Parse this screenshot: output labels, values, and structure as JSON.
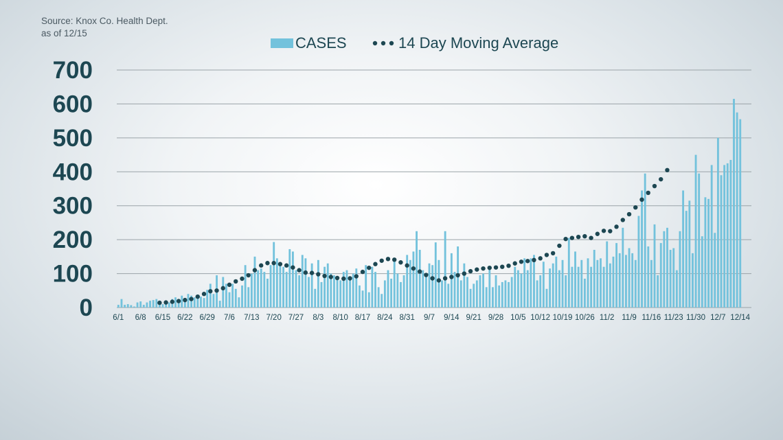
{
  "source_line1": "Source: Knox Co. Health Dept.",
  "source_line2": "as of 12/15",
  "colors": {
    "bar": "#73c2dc",
    "dot": "#1d4752",
    "axis_text": "#1d4752",
    "grid": "#9aa3a8"
  },
  "chart_data": {
    "type": "bar",
    "title": "",
    "xlabel": "",
    "ylabel": "",
    "ylim": [
      0,
      700
    ],
    "y_ticks": [
      0,
      100,
      200,
      300,
      400,
      500,
      600,
      700
    ],
    "grid": true,
    "legend_position": "top-center",
    "legend": [
      {
        "label": "CASES",
        "kind": "bar"
      },
      {
        "label": "14 Day Moving Average",
        "kind": "dots"
      }
    ],
    "x_start_date": "2020-06-01",
    "x_tick_labels": [
      "6/1",
      "6/8",
      "6/15",
      "6/22",
      "6/29",
      "7/6",
      "7/13",
      "7/20",
      "7/27",
      "8/3",
      "8/10",
      "8/17",
      "8/24",
      "8/31",
      "9/7",
      "9/14",
      "9/21",
      "9/28",
      "10/5",
      "10/12",
      "10/19",
      "10/26",
      "11/2",
      "11/9",
      "11/16",
      "11/23",
      "11/30",
      "12/7",
      "12/14"
    ],
    "series": [
      {
        "name": "CASES",
        "kind": "bar",
        "values": [
          8,
          25,
          8,
          10,
          7,
          3,
          15,
          18,
          8,
          15,
          20,
          22,
          25,
          20,
          10,
          12,
          15,
          25,
          30,
          20,
          35,
          28,
          40,
          35,
          30,
          38,
          32,
          28,
          52,
          70,
          40,
          95,
          20,
          90,
          70,
          45,
          70,
          55,
          30,
          65,
          125,
          60,
          100,
          150,
          110,
          115,
          105,
          85,
          125,
          193,
          145,
          130,
          120,
          105,
          172,
          165,
          110,
          95,
          155,
          145,
          90,
          130,
          55,
          140,
          75,
          120,
          130,
          100,
          95,
          90,
          80,
          105,
          110,
          80,
          100,
          115,
          65,
          50,
          125,
          45,
          120,
          105,
          60,
          40,
          80,
          110,
          85,
          140,
          100,
          75,
          95,
          155,
          140,
          165,
          225,
          170,
          110,
          90,
          130,
          125,
          192,
          140,
          80,
          225,
          70,
          160,
          105,
          180,
          80,
          130,
          90,
          55,
          70,
          80,
          95,
          100,
          60,
          120,
          60,
          95,
          65,
          75,
          80,
          75,
          90,
          120,
          110,
          100,
          145,
          110,
          145,
          155,
          80,
          95,
          135,
          55,
          115,
          130,
          150,
          110,
          140,
          95,
          205,
          120,
          165,
          120,
          140,
          85,
          145,
          120,
          170,
          140,
          145,
          120,
          195,
          130,
          150,
          190,
          160,
          235,
          155,
          175,
          160,
          140,
          270,
          345,
          395,
          180,
          140,
          245,
          95,
          190,
          225,
          235,
          170,
          175,
          110,
          225,
          345,
          285,
          315,
          160,
          450,
          395,
          210,
          325,
          320,
          420,
          220,
          500,
          390,
          420,
          425,
          435,
          615,
          575,
          555
        ]
      },
      {
        "name": "14 Day Moving Average",
        "kind": "dots",
        "values": [
          14,
          15,
          17,
          19,
          22,
          25,
          32,
          40,
          48,
          50,
          57,
          67,
          77,
          85,
          95,
          110,
          124,
          131,
          131,
          128,
          124,
          118,
          110,
          103,
          102,
          98,
          93,
          90,
          87,
          85,
          86,
          92,
          105,
          117,
          128,
          138,
          143,
          141,
          133,
          124,
          115,
          106,
          96,
          86,
          80,
          86,
          90,
          95,
          100,
          107,
          112,
          115,
          117,
          118,
          120,
          123,
          130,
          135,
          137,
          140,
          145,
          155,
          160,
          182,
          202,
          205,
          208,
          210,
          205,
          217,
          226,
          225,
          238,
          258,
          275,
          295,
          318,
          338,
          358,
          378,
          405
        ]
      }
    ]
  }
}
